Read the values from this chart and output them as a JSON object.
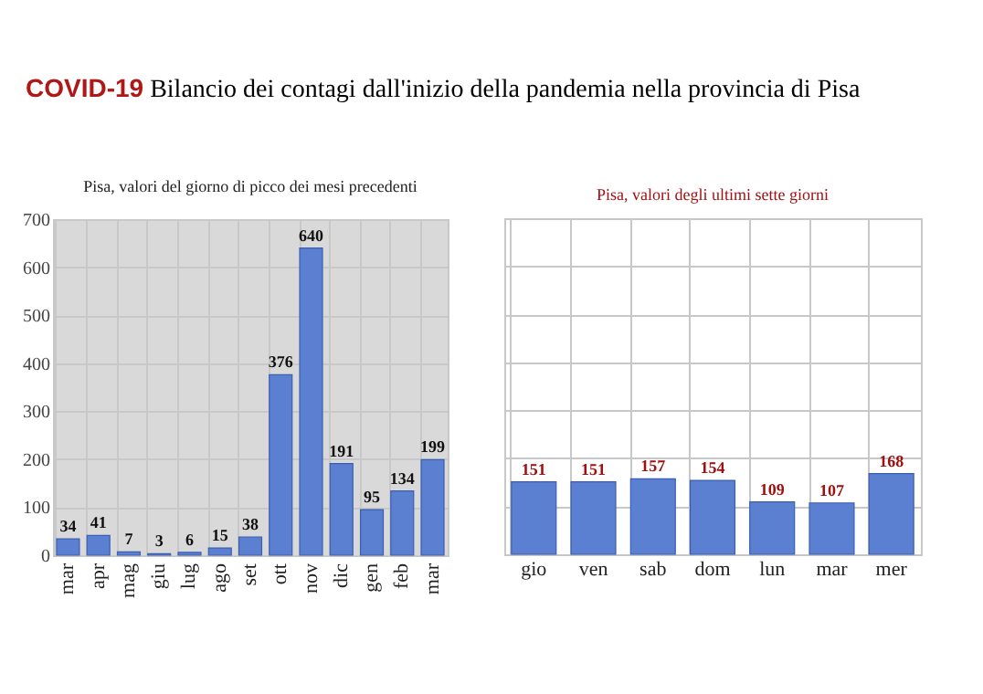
{
  "chart_data": [
    {
      "type": "bar",
      "title": "COVID-19 Bilancio dei contagi dall'inizio della pandemia nella provincia di Pisa",
      "subtitle": "Pisa, valori del giorno di picco dei mesi precedenti",
      "categories": [
        "mar",
        "apr",
        "mag",
        "giu",
        "lug",
        "ago",
        "set",
        "ott",
        "nov",
        "dic",
        "gen",
        "feb",
        "mar"
      ],
      "values": [
        34,
        41,
        7,
        3,
        6,
        15,
        38,
        376,
        640,
        191,
        95,
        134,
        199
      ],
      "color": "#5b7fd1",
      "ylim": [
        0,
        700
      ],
      "yticks": [
        0,
        100,
        200,
        300,
        400,
        500,
        600,
        700
      ],
      "grid": true,
      "data_labels": true
    },
    {
      "type": "bar",
      "title": "Pisa, valori degli ultimi sette giorni",
      "categories": [
        "gio",
        "ven",
        "sab",
        "dom",
        "lun",
        "mar",
        "mer"
      ],
      "values": [
        151,
        151,
        157,
        154,
        109,
        107,
        168
      ],
      "color": "#5b7fd1",
      "ylim": [
        0,
        700
      ],
      "yticks": [
        0,
        100,
        200,
        300,
        400,
        500,
        600,
        700
      ],
      "grid": true,
      "data_labels": true,
      "tick_labels": "x"
    }
  ]
}
